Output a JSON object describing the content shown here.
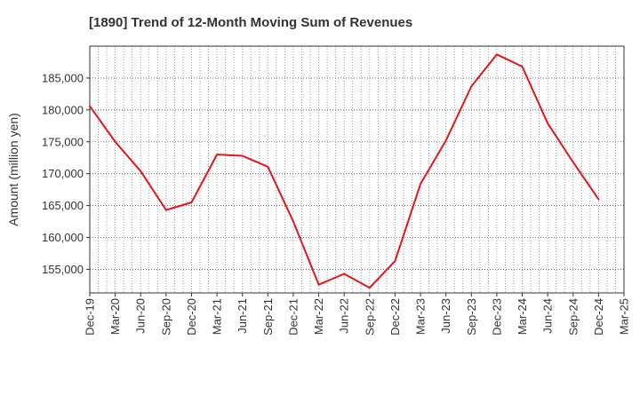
{
  "chart_data": {
    "type": "line",
    "title": "[1890]  Trend of 12-Month Moving Sum of Revenues",
    "xlabel": "",
    "ylabel": "Amount (million yen)",
    "x_ticks": [
      "Dec-19",
      "Mar-20",
      "Jun-20",
      "Sep-20",
      "Dec-20",
      "Mar-21",
      "Jun-21",
      "Sep-21",
      "Dec-21",
      "Mar-22",
      "Jun-22",
      "Sep-22",
      "Dec-22",
      "Mar-23",
      "Jun-23",
      "Sep-23",
      "Dec-23",
      "Mar-24",
      "Jun-24",
      "Sep-24",
      "Dec-24",
      "Mar-25"
    ],
    "y_ticks": [
      "155,000",
      "160,000",
      "165,000",
      "170,000",
      "175,000",
      "180,000",
      "185,000"
    ],
    "y_tick_values": [
      155000,
      160000,
      165000,
      170000,
      175000,
      180000,
      185000
    ],
    "ylim": [
      151300,
      190000
    ],
    "grid": true,
    "line_color": "#e8141b",
    "series": [
      {
        "name": "",
        "x": [
          "Dec-19",
          "Mar-20",
          "Jun-20",
          "Sep-20",
          "Dec-20",
          "Mar-21",
          "Jun-21",
          "Sep-21",
          "Dec-21",
          "Mar-22",
          "Jun-22",
          "Sep-22",
          "Dec-22",
          "Mar-23",
          "Jun-23",
          "Sep-23",
          "Dec-23",
          "Mar-24",
          "Jun-24",
          "Sep-24",
          "Dec-24"
        ],
        "values": [
          180600,
          175000,
          170400,
          164300,
          165500,
          173000,
          172800,
          171100,
          162500,
          152600,
          154300,
          152100,
          156300,
          168400,
          175200,
          183700,
          188700,
          186800,
          177900,
          171800,
          166000
        ]
      }
    ]
  }
}
